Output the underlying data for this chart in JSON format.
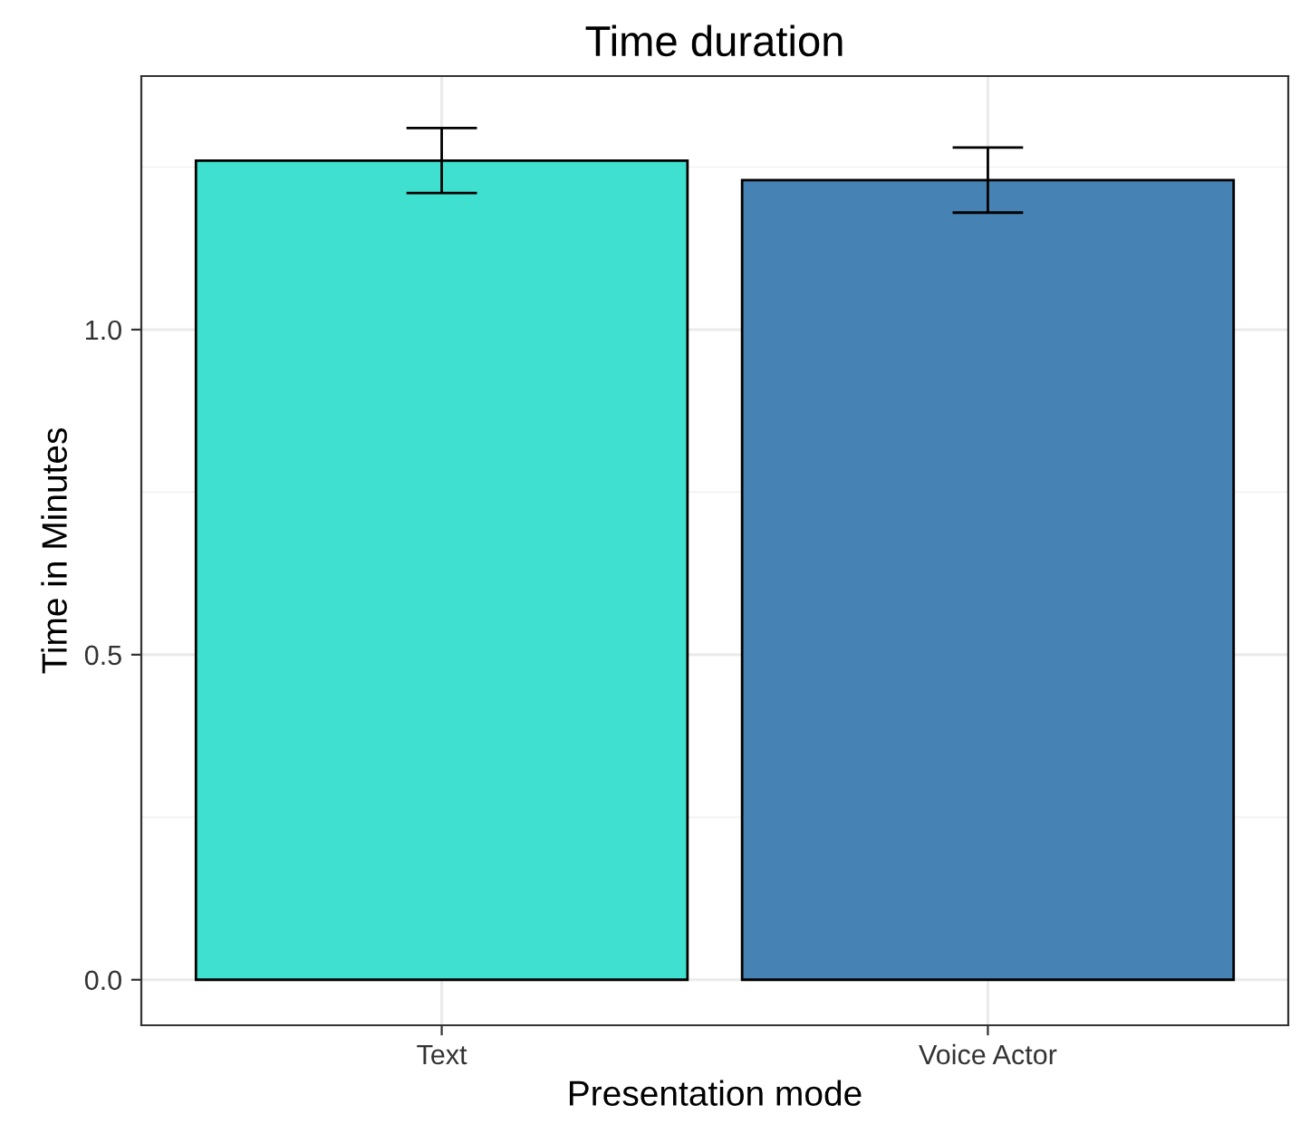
{
  "chart_data": {
    "type": "bar",
    "title": "Time duration",
    "xlabel": "Presentation mode",
    "ylabel": "Time in Minutes",
    "categories": [
      "Text",
      "Voice Actor"
    ],
    "values": [
      1.26,
      1.23
    ],
    "errors": [
      [
        1.21,
        1.31
      ],
      [
        1.18,
        1.28
      ]
    ],
    "colors": [
      "#40e0d0",
      "#4682b4"
    ],
    "ylim": [
      -0.07,
      1.39
    ],
    "yticks": [
      {
        "value": 0,
        "label": "0.0"
      },
      0.5,
      {
        "value": 1,
        "label": "1.0"
      }
    ],
    "grid": true
  }
}
